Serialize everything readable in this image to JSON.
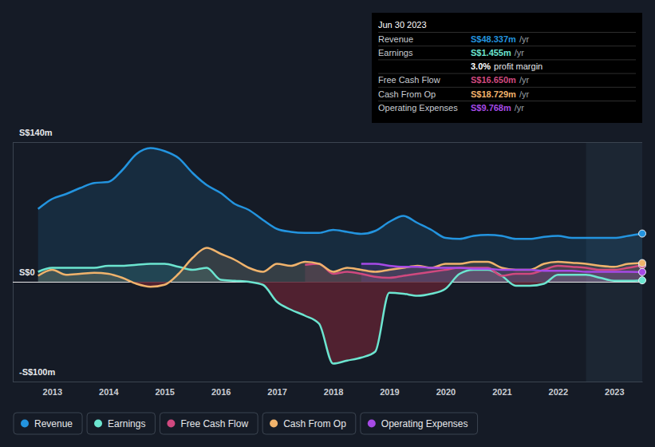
{
  "chart_data": {
    "type": "area",
    "x": [
      2012.75,
      2013,
      2013.25,
      2013.5,
      2013.75,
      2014,
      2014.25,
      2014.5,
      2014.75,
      2015,
      2015.25,
      2015.5,
      2015.75,
      2016,
      2016.25,
      2016.5,
      2016.75,
      2017,
      2017.25,
      2017.5,
      2017.75,
      2018,
      2018.25,
      2018.5,
      2018.75,
      2019,
      2019.25,
      2019.5,
      2019.75,
      2020,
      2020.25,
      2020.5,
      2020.75,
      2021,
      2021.25,
      2021.5,
      2021.75,
      2022,
      2022.25,
      2022.5,
      2022.75,
      2023,
      2023.25,
      2023.5
    ],
    "series": [
      {
        "name": "Revenue",
        "color": "#2394df",
        "values": [
          73,
          83,
          88,
          94,
          99,
          100,
          112,
          128,
          134,
          131,
          124,
          109,
          97,
          89,
          78,
          72,
          62,
          53,
          50,
          49,
          49,
          52,
          50,
          48,
          51,
          60,
          66,
          59,
          52,
          44,
          43,
          46,
          47,
          46,
          43,
          43,
          45,
          46,
          44,
          44,
          44,
          44,
          46,
          48.337
        ]
      },
      {
        "name": "Earnings",
        "color": "#6ce5d0",
        "values": [
          10,
          14,
          14,
          14,
          14,
          16,
          16,
          17,
          18,
          18,
          15,
          12,
          14,
          2,
          1,
          0,
          -3,
          -20,
          -28,
          -34,
          -42,
          -82,
          -79,
          -76,
          -70,
          -11,
          -12,
          -14,
          -12,
          -7,
          8,
          12,
          12,
          6,
          -4,
          -4,
          -2,
          7,
          7,
          7,
          4,
          1,
          1,
          1.455
        ]
      },
      {
        "name": "Free Cash Flow",
        "color": "#d0497f",
        "values": [
          null,
          null,
          null,
          null,
          null,
          null,
          null,
          null,
          null,
          null,
          null,
          null,
          null,
          null,
          null,
          null,
          null,
          null,
          null,
          17,
          18,
          8,
          10,
          8,
          5,
          4,
          6,
          8,
          10,
          12,
          14,
          14,
          14,
          6,
          8,
          8,
          12,
          16,
          15,
          14,
          12,
          12,
          14,
          16.65
        ]
      },
      {
        "name": "Cash From Op",
        "color": "#f0b36c",
        "values": [
          6,
          12,
          7,
          8,
          9,
          8,
          4,
          -2,
          -5,
          -3,
          8,
          24,
          34,
          28,
          22,
          14,
          10,
          18,
          16,
          20,
          18,
          10,
          14,
          12,
          10,
          12,
          14,
          16,
          14,
          18,
          18,
          20,
          20,
          14,
          12,
          12,
          18,
          20,
          19,
          18,
          16,
          15,
          18,
          18.729
        ]
      },
      {
        "name": "Operating Expenses",
        "color": "#a64ae6",
        "values": [
          null,
          null,
          null,
          null,
          null,
          null,
          null,
          null,
          null,
          null,
          null,
          null,
          null,
          null,
          null,
          null,
          null,
          null,
          null,
          null,
          null,
          null,
          null,
          18,
          18,
          16,
          15,
          15,
          14,
          14,
          14,
          13,
          13,
          12,
          12,
          12,
          11,
          11,
          11,
          10,
          10,
          10,
          10,
          9.768
        ]
      }
    ],
    "xlim": [
      2012.3,
      2023.5
    ],
    "xticks": [
      2013,
      2014,
      2015,
      2016,
      2017,
      2018,
      2019,
      2020,
      2021,
      2022,
      2023
    ],
    "ylim": [
      -100,
      140
    ],
    "yticks": [
      {
        "value": -100,
        "label": "-S$100m"
      },
      {
        "value": 0,
        "label": "S$0"
      },
      {
        "value": 140,
        "label": "S$140m"
      }
    ],
    "grid": true,
    "legend": "bottom-left",
    "highlight_x": [
      2022.5,
      2023.5
    ],
    "annotation": {
      "title": "Jun 30 2023",
      "rows": [
        {
          "label": "Revenue",
          "value": "S$48.337m",
          "unit": "/yr",
          "color": "#2394df"
        },
        {
          "label": "Earnings",
          "value": "S$1.455m",
          "unit": "/yr",
          "color": "#6ce5d0"
        },
        {
          "value": "3.0%",
          "unit": "profit margin",
          "color": "#ffffff"
        },
        {
          "label": "Free Cash Flow",
          "value": "S$16.650m",
          "unit": "/yr",
          "color": "#d0497f"
        },
        {
          "label": "Cash From Op",
          "value": "S$18.729m",
          "unit": "/yr",
          "color": "#f0b36c"
        },
        {
          "label": "Operating Expenses",
          "value": "S$9.768m",
          "unit": "/yr",
          "color": "#a64ae6"
        }
      ]
    }
  }
}
